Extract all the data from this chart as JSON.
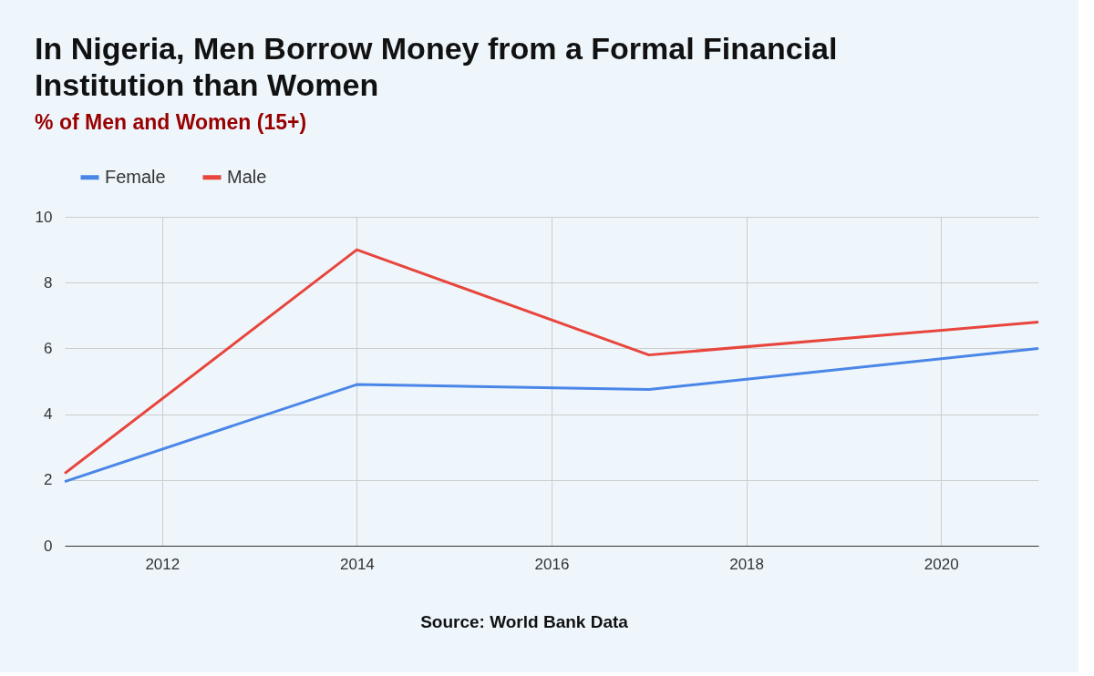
{
  "chart_data": {
    "type": "line",
    "title": [
      "In Nigeria, Men Borrow Money from a Formal Financial",
      "Institution than Women"
    ],
    "subtitle": "% of Men and Women  (15+)",
    "annotations": [
      "Source: World Bank Data"
    ],
    "series": [
      {
        "name": "Female",
        "color": "#4a86e8",
        "x": [
          2011,
          2014,
          2017,
          2021
        ],
        "values": [
          1.95,
          4.9,
          4.75,
          6.0
        ]
      },
      {
        "name": "Male",
        "color": "#e8453c",
        "x": [
          2011,
          2014,
          2017,
          2021
        ],
        "values": [
          2.2,
          9.0,
          5.8,
          6.8
        ]
      }
    ],
    "xlim": [
      2011,
      2021
    ],
    "xticks": [
      2012,
      2014,
      2016,
      2018,
      2020
    ],
    "ylim": [
      0,
      10
    ],
    "yticks": [
      0,
      2,
      4,
      6,
      8,
      10
    ],
    "grid": true,
    "legend": "top",
    "marker": "none",
    "line_style": "solid"
  }
}
